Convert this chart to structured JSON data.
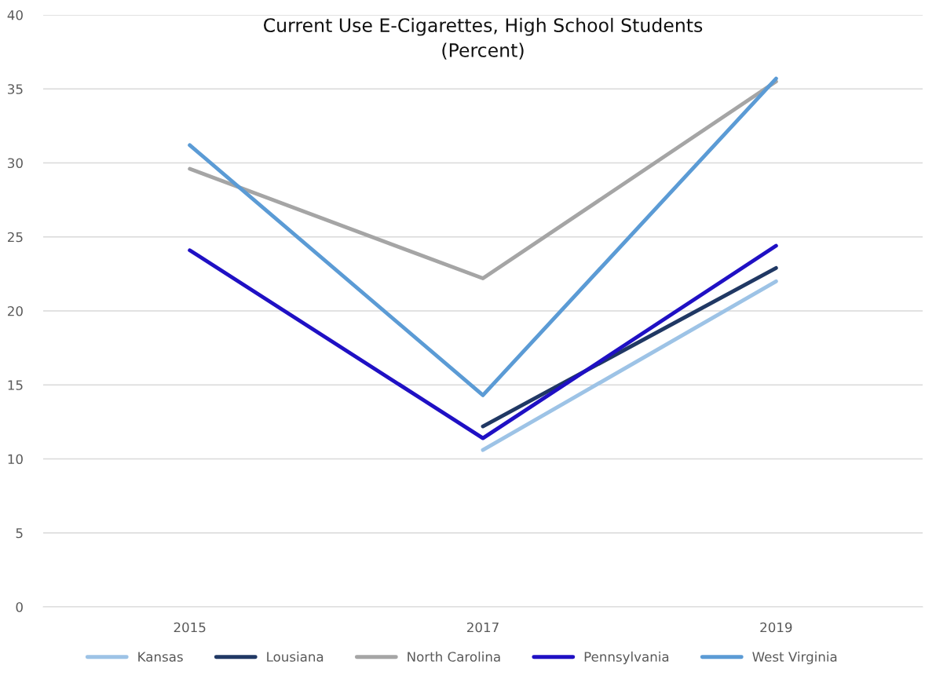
{
  "chart_data": {
    "type": "line",
    "title": "Current Use E-Cigarettes, High School Students\n(Percent)",
    "categories": [
      "2015",
      "2017",
      "2019"
    ],
    "series": [
      {
        "name": "Kansas",
        "color": "#9dc3e6",
        "values": [
          null,
          10.6,
          22.0
        ]
      },
      {
        "name": "Lousiana",
        "color": "#203864",
        "values": [
          null,
          12.2,
          22.9
        ]
      },
      {
        "name": "North Carolina",
        "color": "#a5a5a5",
        "values": [
          29.6,
          22.2,
          35.5
        ]
      },
      {
        "name": "Pennsylvania",
        "color": "#1f10c4",
        "values": [
          24.1,
          11.4,
          24.4
        ]
      },
      {
        "name": "West Virginia",
        "color": "#5b9bd5",
        "values": [
          31.2,
          14.3,
          35.7
        ]
      }
    ],
    "ylim": [
      0,
      40
    ],
    "yticks": [
      0,
      5,
      10,
      15,
      20,
      25,
      30,
      35,
      40
    ],
    "grid": "y",
    "legend": "bottom",
    "marker": "none",
    "line_style": "solid"
  }
}
